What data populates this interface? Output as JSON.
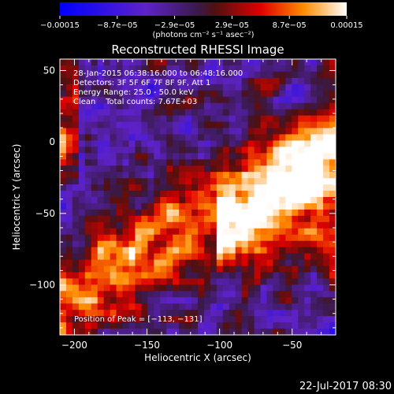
{
  "chart_data": {
    "type": "heatmap",
    "title": "Reconstructed RHESSI Image",
    "xlabel": "Heliocentric X (arcsec)",
    "ylabel": "Heliocentric Y (arcsec)",
    "xlim": [
      -210,
      -20
    ],
    "ylim": [
      -135,
      58
    ],
    "xticks": [
      -200,
      -150,
      -100,
      -50
    ],
    "xtick_labels": [
      "−200",
      "−150",
      "−100",
      "−50"
    ],
    "yticks": [
      50,
      0,
      -50,
      -100
    ],
    "ytick_labels": [
      "50",
      "0",
      "−50",
      "−100"
    ],
    "colorbar": {
      "min": -0.00015,
      "max": 0.00015,
      "tick_labels": [
        "−0.00015",
        "−8.7e−05",
        "−2.9e−05",
        "2.9e−05",
        "8.7e−05",
        "0.00015"
      ],
      "unit_label": "(photons cm⁻² s⁻¹ asec⁻²)"
    },
    "annotations": [
      "28-Jan-2015 06:38:16.000 to 06:48:16.000",
      "Detectors: 3F 5F 6F 7F 8F 9F, Att 1",
      "Energy Range: 25.0 - 50.0 keV",
      "Clean    Total counts: 7.67E+03"
    ],
    "peak_label": "Position of Peak = [−113, −131]",
    "grid": false
  },
  "footer": {
    "timestamp": "22-Jul-2017 08:30"
  }
}
